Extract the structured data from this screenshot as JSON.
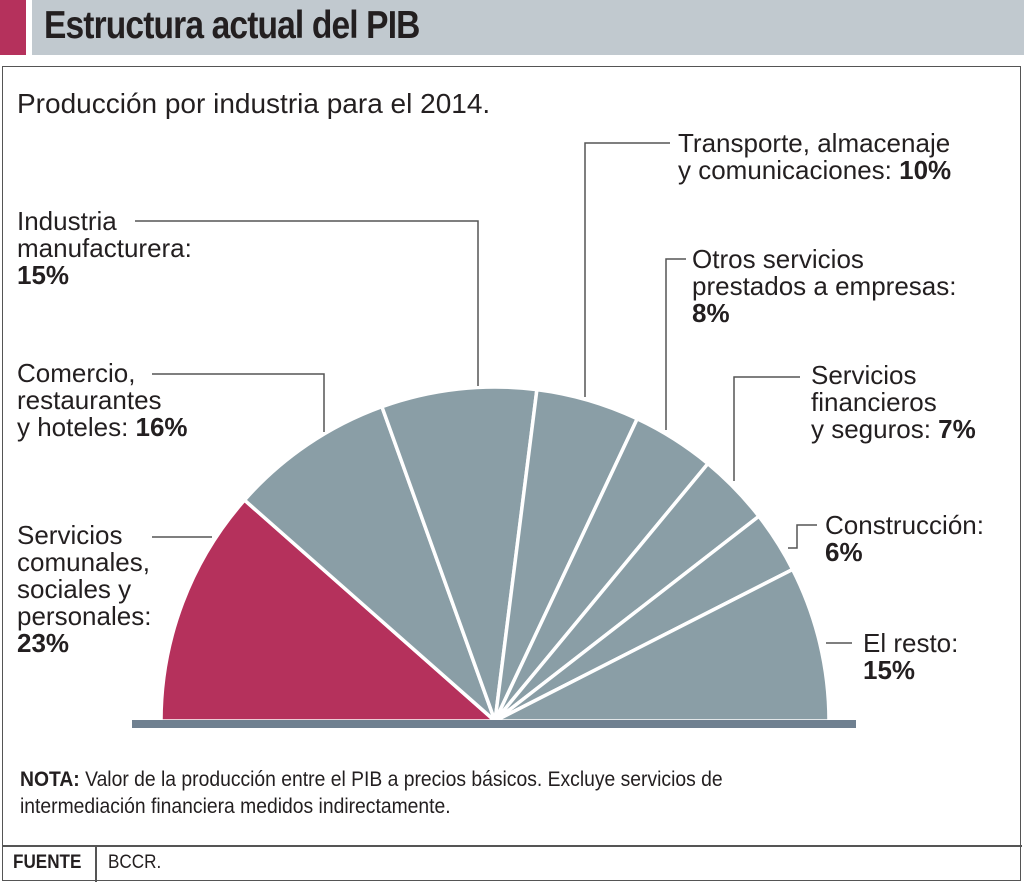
{
  "header": {
    "title": "Estructura actual del PIB",
    "accent_color": "#b5315c",
    "band_color": "#c1c9cf"
  },
  "chart_data": {
    "type": "pie",
    "variant": "semicircle",
    "title": "Estructura actual del PIB",
    "subtitle": "Producción por industria para el 2014.",
    "unit": "%",
    "slices": [
      {
        "label_lines": [
          "Servicios",
          "comunales,",
          "sociales y",
          "personales:"
        ],
        "value_text": "23%",
        "value": 23,
        "color": "#b5315c"
      },
      {
        "label_lines": [
          "Comercio,",
          "restaurantes",
          "y hoteles: "
        ],
        "value_text": "16%",
        "value": 16,
        "color": "#8a9ea6"
      },
      {
        "label_lines": [
          "Industria",
          "manufacturera:"
        ],
        "value_text": "15%",
        "value": 15,
        "color": "#8a9ea6"
      },
      {
        "label_lines": [
          "Transporte, almacenaje",
          "y comunicaciones: "
        ],
        "value_text": "10%",
        "value": 10,
        "color": "#8a9ea6"
      },
      {
        "label_lines": [
          "Otros servicios",
          "prestados a empresas:"
        ],
        "value_text": "8%",
        "value": 8,
        "color": "#8a9ea6"
      },
      {
        "label_lines": [
          "Servicios",
          "financieros",
          "y seguros: "
        ],
        "value_text": "7%",
        "value": 7,
        "color": "#8a9ea6"
      },
      {
        "label_lines": [
          "Construcción:"
        ],
        "value_text": "6%",
        "value": 6,
        "color": "#8a9ea6"
      },
      {
        "label_lines": [
          "El resto:"
        ],
        "value_text": "15%",
        "value": 15,
        "color": "#8a9ea6"
      }
    ],
    "base_color": "#6f8090"
  },
  "note": {
    "label": "NOTA:",
    "line1": " Valor de la producción entre el PIB a precios básicos. Excluye servicios de",
    "line2": "intermediación financiera medidos indirectamente."
  },
  "source": {
    "label": "FUENTE",
    "value": "BCCR."
  }
}
